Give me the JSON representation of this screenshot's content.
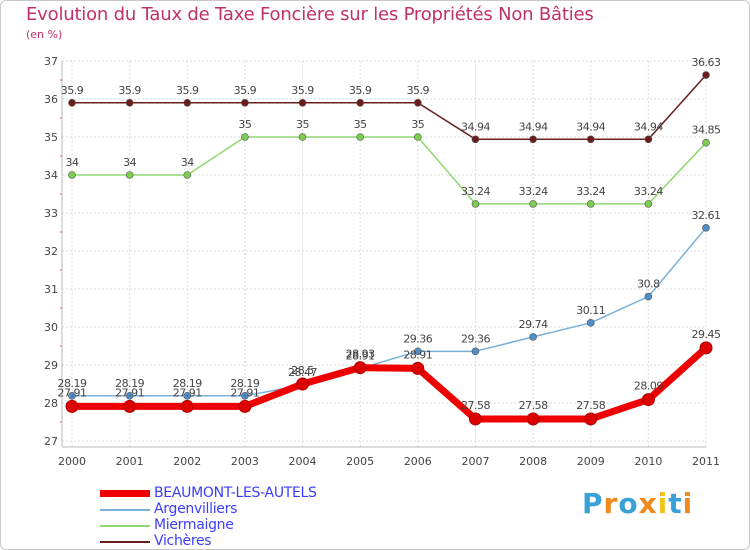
{
  "title": "Evolution du Taux de Taxe Foncière sur les Propriétés Non Bâties",
  "unit_label": "(en %)",
  "logo_text": "Proxiti",
  "logo_colors": [
    "#3aa0d8",
    "#f08a1c",
    "#3aa0d8",
    "#f08a1c",
    "#f0c419",
    "#3aa0d8",
    "#f08a1c"
  ],
  "chart_data": {
    "type": "line",
    "x": [
      2000,
      2001,
      2002,
      2003,
      2004,
      2005,
      2006,
      2007,
      2008,
      2009,
      2010,
      2011
    ],
    "ylim": [
      27,
      37
    ],
    "yticks": [
      27,
      28,
      29,
      30,
      31,
      32,
      33,
      34,
      35,
      36,
      37
    ],
    "grid": true,
    "legend_position": "bottom-left",
    "series": [
      {
        "name": "Vichères",
        "color": "#6b1c1c",
        "marker_color": "#6b1c1c",
        "weight": "thin",
        "values": [
          35.9,
          35.9,
          35.9,
          35.9,
          35.9,
          35.9,
          35.9,
          34.94,
          34.94,
          34.94,
          34.94,
          36.63
        ],
        "labels": [
          "35.9",
          "35.9",
          "35.9",
          "35.9",
          "35.9",
          "35.9",
          "35.9",
          "34.94",
          "34.94",
          "34.94",
          "34.94",
          "36.63"
        ]
      },
      {
        "name": "Miermaigne",
        "color": "#8fd870",
        "marker_color": "#7ccc50",
        "weight": "thin",
        "values": [
          34,
          34,
          34,
          35,
          35,
          35,
          35,
          33.24,
          33.24,
          33.24,
          33.24,
          34.85
        ],
        "labels": [
          "34",
          "34",
          "34",
          "35",
          "35",
          "35",
          "35",
          "33.24",
          "33.24",
          "33.24",
          "33.24",
          "34.85"
        ]
      },
      {
        "name": "Argenvilliers",
        "color": "#7ab0d8",
        "marker_color": "#4f8fc8",
        "weight": "thin",
        "values": [
          28.19,
          28.19,
          28.19,
          28.19,
          28.47,
          28.91,
          29.36,
          29.36,
          29.74,
          30.11,
          30.8,
          32.61
        ],
        "labels": [
          "28.19",
          "28.19",
          "28.19",
          "28.19",
          "28.47",
          "28.91",
          "29.36",
          "29.36",
          "29.74",
          "30.11",
          "30.8",
          "32.61"
        ]
      },
      {
        "name": "BEAUMONT-LES-AUTELS",
        "color": "#ee0000",
        "marker_color": "#dd0000",
        "weight": "thick",
        "values": [
          27.91,
          27.91,
          27.91,
          27.91,
          28.5,
          28.93,
          28.91,
          27.58,
          27.58,
          27.58,
          28.09,
          29.45
        ],
        "labels": [
          "27.91",
          "27.91",
          "27.91",
          "27.91",
          "28.5",
          "28.93",
          "28.91",
          "27.58",
          "27.58",
          "27.58",
          "28.09",
          "29.45"
        ]
      }
    ],
    "legend": [
      "BEAUMONT-LES-AUTELS",
      "Argenvilliers",
      "Miermaigne",
      "Vichères"
    ]
  }
}
